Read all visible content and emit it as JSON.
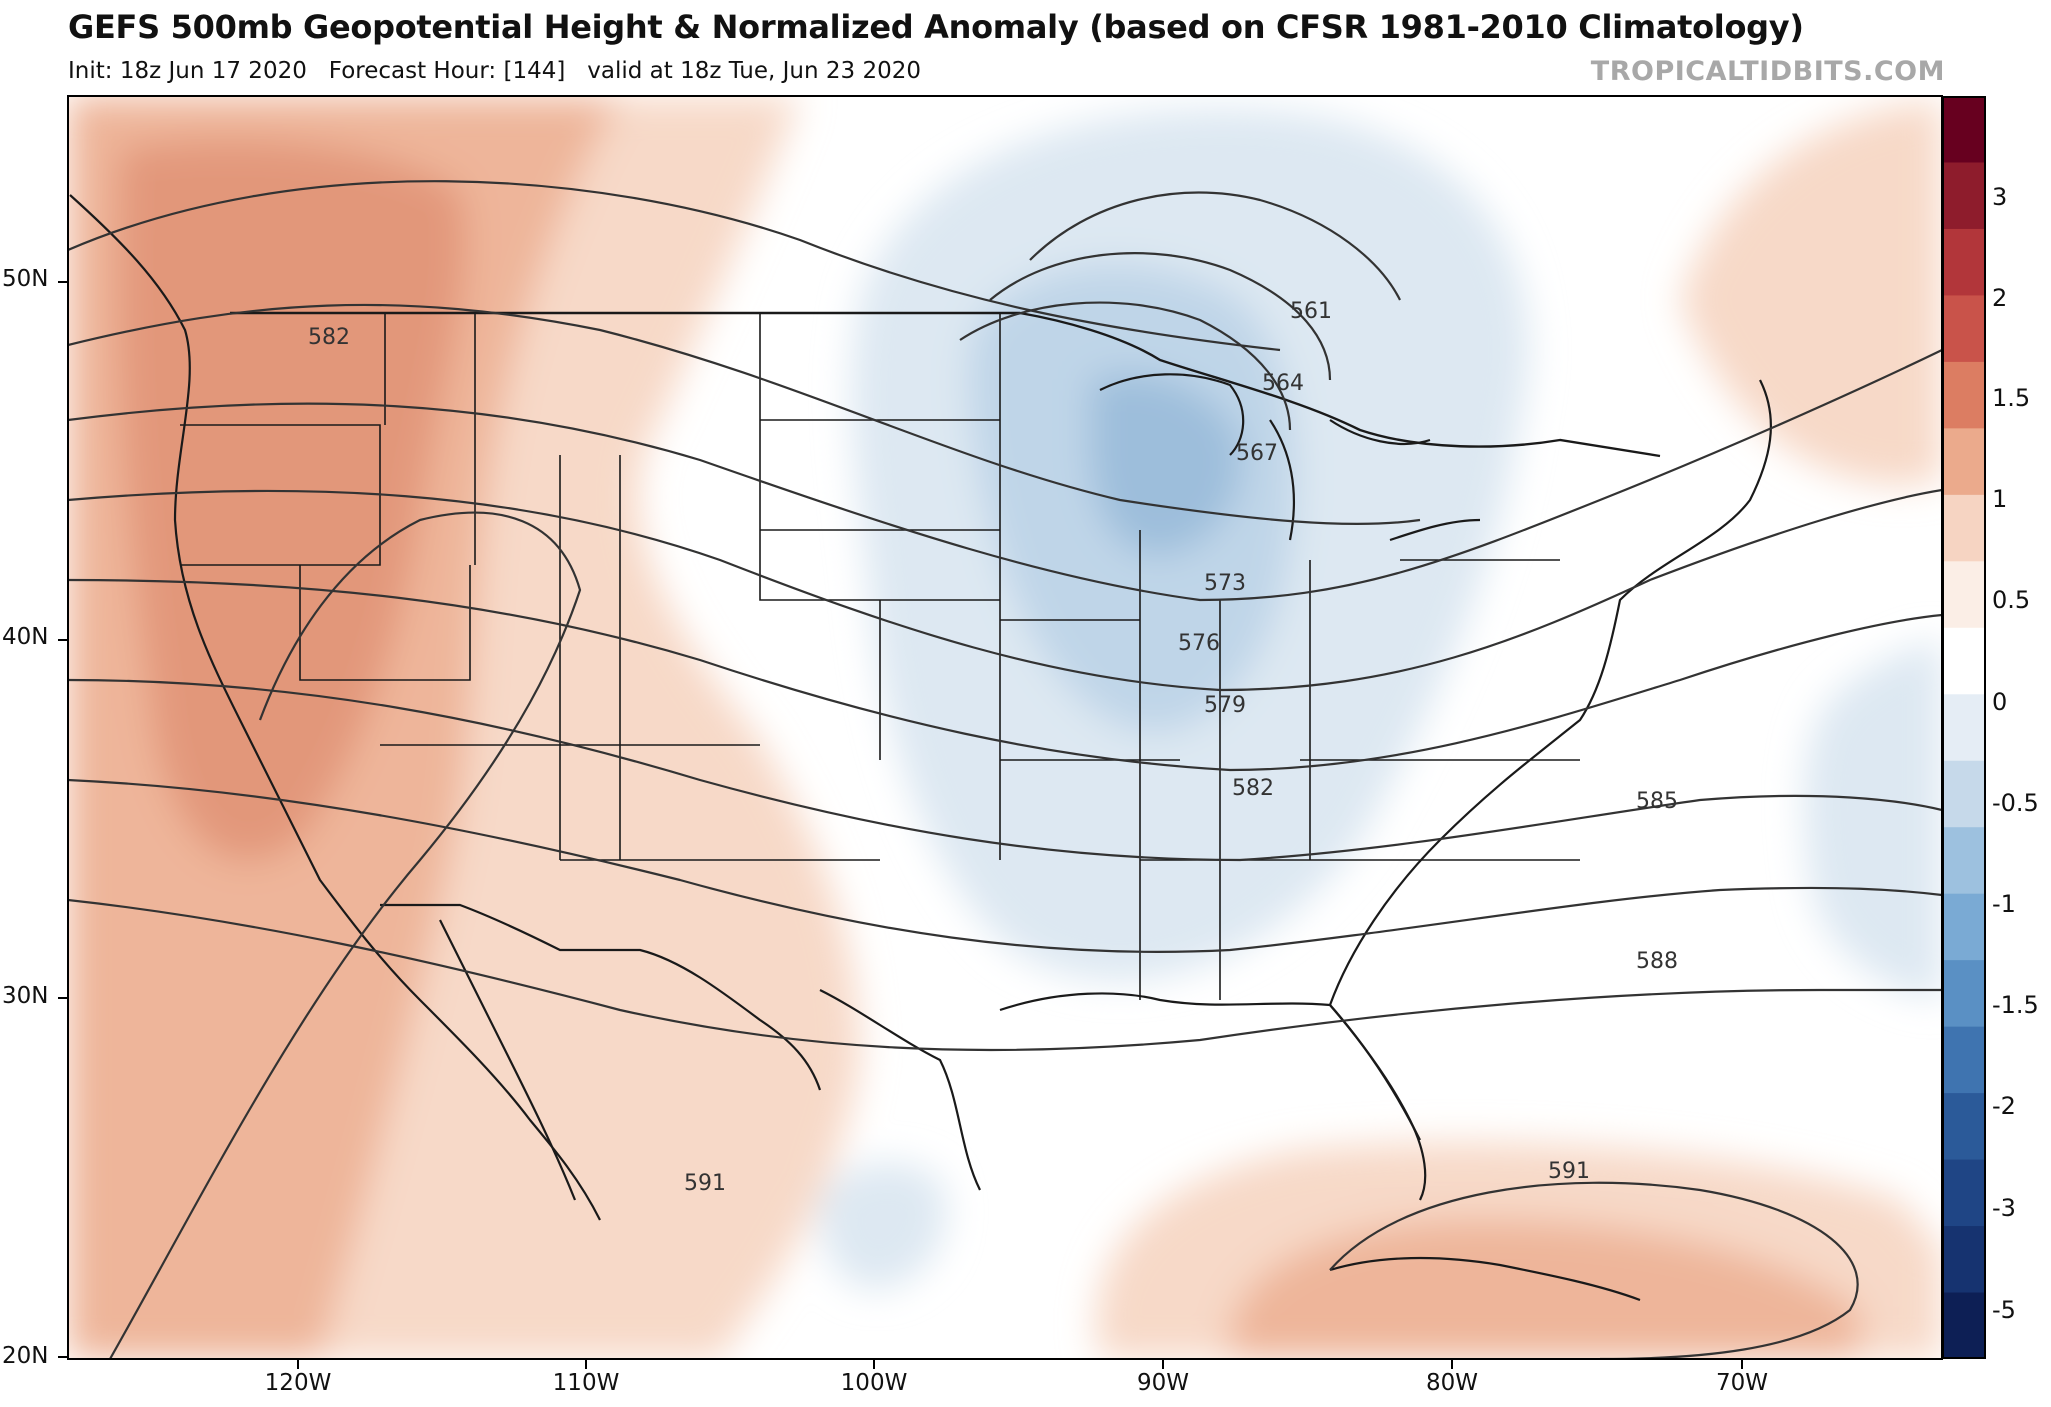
{
  "header": {
    "title": "GEFS 500mb Geopotential Height & Normalized Anomaly (based on CFSR 1981-2010 Climatology)",
    "init_label": "Init: 18z Jun 17 2020",
    "forecast_hour_label": "Forecast Hour: [144]",
    "valid_label": "valid at 18z Tue, Jun 23 2020",
    "credit": "TROPICALTIDBITS.COM"
  },
  "axes": {
    "lat_labels": [
      "50N",
      "40N",
      "30N",
      "20N"
    ],
    "lon_labels": [
      "120W",
      "110W",
      "100W",
      "90W",
      "80W",
      "70W"
    ]
  },
  "contours": {
    "labels": [
      "582",
      "561",
      "564",
      "567",
      "573",
      "576",
      "579",
      "582",
      "585",
      "588",
      "591",
      "591"
    ]
  },
  "colorbar": {
    "labels": [
      "3",
      "2",
      "1.5",
      "1",
      "0.5",
      "0",
      "-0.5",
      "-1",
      "-1.5",
      "-2",
      "-3",
      "-5"
    ],
    "colors": [
      "#67001f",
      "#8e1c2c",
      "#b2363a",
      "#c9534a",
      "#dc7d62",
      "#ebaa8c",
      "#f6d4c2",
      "#fbeee6",
      "#ffffff",
      "#e5edf5",
      "#c6d9ea",
      "#9dc1df",
      "#7aaad4",
      "#5a90c4",
      "#3f74b0",
      "#2b5a99",
      "#1f4585",
      "#163370",
      "#0d1f55"
    ]
  },
  "colors": {
    "warm_light": "#f7d9c8",
    "warm_mid": "#eeb59a",
    "warm_strong": "#e2977a",
    "cool_light": "#dde8f2",
    "cool_mid": "#bfd5e8",
    "cool_strong": "#9dbedb",
    "contour": "#333333"
  }
}
